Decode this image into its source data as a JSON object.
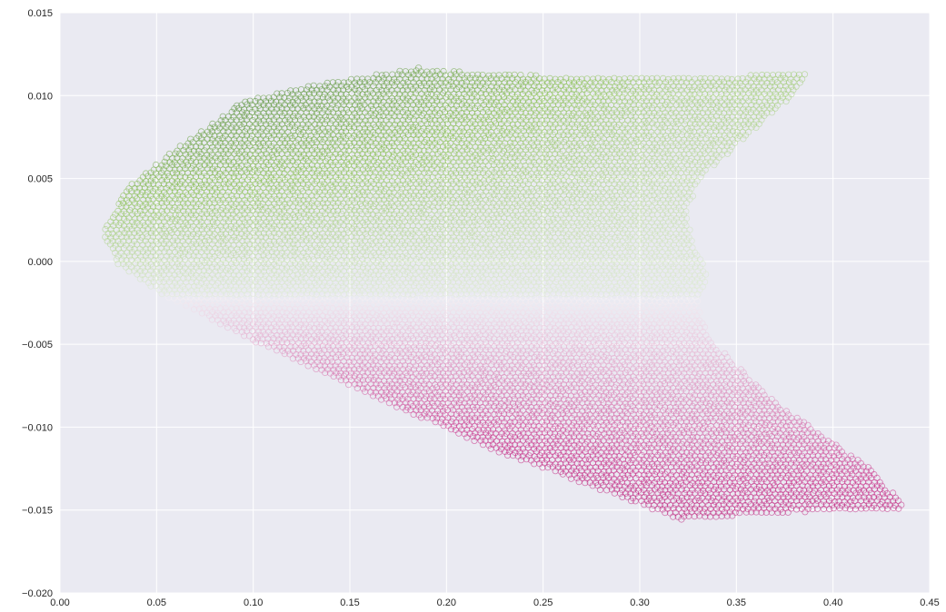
{
  "chart_data": {
    "type": "scatter",
    "title": "",
    "xlabel": "",
    "ylabel": "",
    "xlim": [
      0.0,
      0.45
    ],
    "ylim": [
      -0.02,
      0.015
    ],
    "grid": true,
    "legend": "none",
    "x_ticks": [
      "0.00",
      "0.05",
      "0.10",
      "0.15",
      "0.20",
      "0.25",
      "0.30",
      "0.35",
      "0.40",
      "0.45"
    ],
    "y_ticks": [
      "−0.020",
      "−0.015",
      "−0.010",
      "−0.005",
      "0.000",
      "0.005",
      "0.010",
      "0.015"
    ],
    "x_tick_values": [
      0.0,
      0.05,
      0.1,
      0.15,
      0.2,
      0.25,
      0.3,
      0.35,
      0.4,
      0.45
    ],
    "y_tick_values": [
      -0.02,
      -0.015,
      -0.01,
      -0.005,
      0.0,
      0.005,
      0.01,
      0.015
    ],
    "colormap": {
      "name": "PiYG",
      "low": "#8e0152",
      "mid": "#f7f7f7",
      "high": "#276419"
    },
    "marker": "hollow-circle",
    "series": [
      {
        "points_sampled_boundary": {
          "x": [
            0.022,
            0.035,
            0.06,
            0.095,
            0.12,
            0.185,
            0.2,
            0.25,
            0.3,
            0.35,
            0.388,
            0.375,
            0.355,
            0.33,
            0.325,
            0.327,
            0.334,
            0.335,
            0.33,
            0.335,
            0.37,
            0.42,
            0.438,
            0.41,
            0.37,
            0.32,
            0.28,
            0.22,
            0.15,
            0.1,
            0.05,
            0.03,
            0.022
          ],
          "y": [
            0.0018,
            0.0045,
            0.0068,
            0.0097,
            0.0104,
            0.0117,
            0.0115,
            0.0112,
            0.0111,
            0.0112,
            0.0114,
            0.0095,
            0.0075,
            0.0048,
            0.003,
            0.0012,
            -0.0005,
            -0.0009,
            -0.0025,
            -0.0045,
            -0.0085,
            -0.0125,
            -0.0149,
            -0.015,
            -0.0152,
            -0.0156,
            -0.0138,
            -0.0112,
            -0.0075,
            -0.0048,
            -0.0018,
            -0.0002,
            0.0018
          ]
        },
        "color_value": "y"
      }
    ]
  }
}
